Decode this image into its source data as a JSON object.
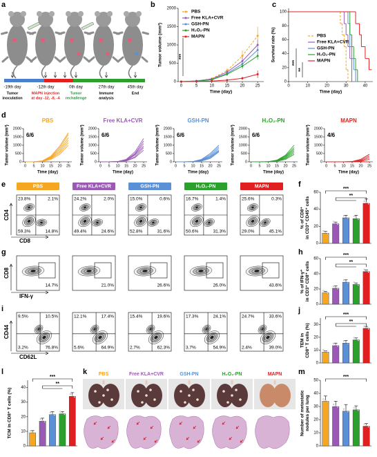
{
  "schematic": {
    "label": "a",
    "events": [
      {
        "day": "-19th day",
        "lines": [
          "Tumor",
          "inoculation"
        ],
        "color": "#000000"
      },
      {
        "day": "-12th day",
        "lines": [
          "MAPN injection",
          "at day -12, -8, -4"
        ],
        "color": "#e02020"
      },
      {
        "day": "0th day",
        "lines": [
          "Tumor",
          "rechallenge"
        ],
        "color": "#1a9a3a"
      },
      {
        "day": "27th day",
        "lines": [
          "Immune",
          "analysis"
        ],
        "color": "#000000"
      },
      {
        "day": "45th day",
        "lines": [
          "End"
        ],
        "color": "#000000"
      }
    ]
  },
  "chart_data": [
    {
      "type": "line",
      "label": "b",
      "ylabel": "Tumor volume (mm³)",
      "xlabel": "Time (day)",
      "x": [
        0,
        5,
        10,
        15,
        20,
        25
      ],
      "xlim": [
        -1,
        27
      ],
      "xticks": [
        0,
        5,
        10,
        15,
        20,
        25
      ],
      "ylim": [
        0,
        2000
      ],
      "yticks": [
        0,
        500,
        1000,
        1500,
        2000
      ],
      "legend": "upper left",
      "annotations": [
        "***"
      ],
      "series": [
        {
          "name": "PBS",
          "color": "#f5a623",
          "dashed": true,
          "values": [
            0,
            20,
            80,
            300,
            700,
            1250
          ],
          "errors": [
            0,
            5,
            20,
            60,
            150,
            250
          ]
        },
        {
          "name": "Free KLA+CVR",
          "color": "#9b59b6",
          "values": [
            0,
            20,
            70,
            260,
            560,
            1000
          ],
          "errors": [
            0,
            5,
            15,
            50,
            100,
            150
          ]
        },
        {
          "name": "GSH-PN",
          "color": "#5b8fd6",
          "values": [
            0,
            15,
            60,
            220,
            480,
            860
          ],
          "errors": [
            0,
            5,
            15,
            40,
            80,
            120
          ]
        },
        {
          "name": "H₂O₂-PN",
          "color": "#2ca02c",
          "values": [
            0,
            10,
            50,
            200,
            420,
            700
          ],
          "errors": [
            0,
            5,
            10,
            40,
            70,
            100
          ]
        },
        {
          "name": "MAPN",
          "color": "#e02020",
          "values": [
            0,
            5,
            15,
            40,
            90,
            200
          ],
          "errors": [
            0,
            2,
            5,
            15,
            40,
            100
          ]
        }
      ]
    },
    {
      "type": "step",
      "label": "c",
      "ylabel": "Survival rate (%)",
      "xlabel": "Time (day)",
      "xlim": [
        0,
        44
      ],
      "xticks": [
        0,
        10,
        20,
        30,
        40
      ],
      "ylim": [
        0,
        105
      ],
      "yticks": [
        0,
        20,
        40,
        60,
        80,
        100
      ],
      "legend": "center right",
      "annotations": [
        "***",
        "**"
      ],
      "series": [
        {
          "name": "PBS",
          "color": "#f5a623",
          "dashed": true,
          "x": [
            0,
            27,
            28,
            29,
            30,
            31
          ],
          "values": [
            100,
            83,
            67,
            50,
            17,
            0
          ]
        },
        {
          "name": "Free KLA+CVR",
          "color": "#9b59b6",
          "x": [
            0,
            29,
            30,
            31,
            32,
            33
          ],
          "values": [
            100,
            83,
            67,
            50,
            33,
            0
          ]
        },
        {
          "name": "GSH-PN",
          "color": "#5b8fd6",
          "x": [
            0,
            31,
            32,
            33,
            34,
            35
          ],
          "values": [
            100,
            83,
            50,
            33,
            17,
            0
          ]
        },
        {
          "name": "H₂O₂-PN",
          "color": "#2ca02c",
          "x": [
            0,
            32,
            33,
            34,
            35,
            36
          ],
          "values": [
            100,
            67,
            50,
            33,
            17,
            0
          ]
        },
        {
          "name": "MAPN",
          "color": "#e02020",
          "x": [
            0,
            35,
            37,
            38,
            40,
            42
          ],
          "values": [
            100,
            83,
            67,
            50,
            33,
            17
          ]
        }
      ]
    },
    {
      "type": "lines",
      "label": "d",
      "title": "PBS",
      "ratio": "6/6",
      "color": "#f5a623",
      "ylabel": "Tumor volume (mm³)",
      "xlabel": "Time (day)",
      "x": [
        0,
        5,
        10,
        15,
        20,
        25
      ],
      "xlim": [
        -1,
        27
      ],
      "xticks": [
        0,
        5,
        10,
        15,
        20,
        25
      ],
      "ylim": [
        0,
        2000
      ],
      "yticks": [
        0,
        500,
        1000,
        1500,
        2000
      ],
      "lines": [
        [
          0,
          0,
          60,
          350,
          950,
          1750
        ],
        [
          0,
          0,
          50,
          300,
          850,
          1650
        ],
        [
          0,
          0,
          40,
          260,
          750,
          1450
        ],
        [
          0,
          0,
          30,
          220,
          650,
          1300
        ],
        [
          0,
          0,
          40,
          200,
          550,
          1150
        ],
        [
          0,
          0,
          20,
          150,
          450,
          1000
        ]
      ]
    },
    {
      "type": "lines",
      "title": "Free KLA+CVR",
      "ratio": "6/6",
      "color": "#9b59b6",
      "ylabel": "Tumor volume (mm³)",
      "xlabel": "Time (day)",
      "x": [
        0,
        5,
        10,
        15,
        20,
        25
      ],
      "xlim": [
        -1,
        27
      ],
      "xticks": [
        0,
        5,
        10,
        15,
        20,
        25
      ],
      "ylim": [
        0,
        2000
      ],
      "yticks": [
        0,
        500,
        1000,
        1500,
        2000
      ],
      "lines": [
        [
          0,
          0,
          20,
          150,
          600,
          1400
        ],
        [
          0,
          0,
          20,
          120,
          500,
          1250
        ],
        [
          0,
          0,
          10,
          100,
          450,
          1100
        ],
        [
          0,
          0,
          10,
          80,
          400,
          950
        ],
        [
          0,
          0,
          0,
          60,
          300,
          850
        ],
        [
          0,
          0,
          0,
          50,
          250,
          700
        ]
      ]
    },
    {
      "type": "lines",
      "title": "GSH-PN",
      "ratio": "6/6",
      "color": "#5b8fd6",
      "ylabel": "Tumor volume (mm³)",
      "xlabel": "Time (day)",
      "x": [
        0,
        5,
        10,
        15,
        20,
        25
      ],
      "xlim": [
        -1,
        27
      ],
      "xticks": [
        0,
        5,
        10,
        15,
        20,
        25
      ],
      "ylim": [
        0,
        2000
      ],
      "yticks": [
        0,
        500,
        1000,
        1500,
        2000
      ],
      "lines": [
        [
          0,
          0,
          20,
          150,
          500,
          1000
        ],
        [
          0,
          0,
          10,
          120,
          420,
          900
        ],
        [
          0,
          0,
          10,
          100,
          350,
          800
        ],
        [
          0,
          0,
          0,
          80,
          300,
          700
        ],
        [
          0,
          0,
          0,
          60,
          250,
          650
        ],
        [
          0,
          0,
          0,
          50,
          200,
          600
        ]
      ]
    },
    {
      "type": "lines",
      "title": "H₂O₂-PN",
      "ratio": "6/6",
      "color": "#2ca02c",
      "ylabel": "Tumor volume (mm³)",
      "xlabel": "Time (day)",
      "x": [
        0,
        5,
        10,
        15,
        20,
        25
      ],
      "xlim": [
        -1,
        27
      ],
      "xticks": [
        0,
        5,
        10,
        15,
        20,
        25
      ],
      "ylim": [
        0,
        2000
      ],
      "yticks": [
        0,
        500,
        1000,
        1500,
        2000
      ],
      "lines": [
        [
          0,
          0,
          10,
          100,
          400,
          1000
        ],
        [
          0,
          0,
          10,
          80,
          350,
          850
        ],
        [
          0,
          0,
          0,
          60,
          300,
          750
        ],
        [
          0,
          0,
          0,
          50,
          250,
          650
        ],
        [
          0,
          0,
          0,
          40,
          200,
          550
        ],
        [
          0,
          0,
          0,
          30,
          150,
          450
        ]
      ]
    },
    {
      "type": "lines",
      "title": "MAPN",
      "ratio": "4/6",
      "color": "#e02020",
      "ylabel": "Tumor volume (mm³)",
      "xlabel": "Time (day)",
      "x": [
        0,
        5,
        10,
        15,
        20,
        25
      ],
      "xlim": [
        -1,
        27
      ],
      "xticks": [
        0,
        5,
        10,
        15,
        20,
        25
      ],
      "ylim": [
        0,
        2000
      ],
      "yticks": [
        0,
        500,
        1000,
        1500,
        2000
      ],
      "lines": [
        [
          0,
          0,
          0,
          20,
          150,
          450
        ],
        [
          0,
          0,
          0,
          10,
          100,
          350
        ],
        [
          0,
          0,
          0,
          0,
          60,
          250
        ],
        [
          0,
          0,
          0,
          0,
          30,
          150
        ],
        [
          0,
          0,
          0,
          0,
          0,
          0
        ],
        [
          0,
          0,
          0,
          0,
          0,
          0
        ]
      ]
    },
    {
      "type": "bar",
      "label": "f",
      "ylabel": [
        "% of CD8⁺",
        "in CD3⁺ CD45⁺ cells"
      ],
      "ylim": [
        0,
        60
      ],
      "yticks": [
        0,
        20,
        40,
        60
      ],
      "values": [
        12,
        23,
        30,
        29,
        47
      ],
      "errors": [
        2,
        2,
        3,
        4,
        5
      ],
      "colors": [
        "#f5a623",
        "#9b59b6",
        "#5b8fd6",
        "#2ca02c",
        "#e02020"
      ],
      "annotations": [
        "***",
        "**"
      ]
    },
    {
      "type": "bar",
      "label": "h",
      "ylabel": [
        "% of IFN-γ⁺",
        "in CD3⁺ CD8⁺ cells"
      ],
      "ylim": [
        0,
        60
      ],
      "yticks": [
        0,
        20,
        40,
        60
      ],
      "values": [
        15,
        21,
        29,
        26,
        43
      ],
      "errors": [
        2,
        3,
        3,
        2,
        2
      ],
      "colors": [
        "#f5a623",
        "#9b59b6",
        "#5b8fd6",
        "#2ca02c",
        "#e02020"
      ],
      "annotations": [
        "***",
        "**"
      ]
    },
    {
      "type": "bar",
      "label": "j",
      "ylabel": [
        "TEM in",
        "CD8⁺ T cells (%)"
      ],
      "ylim": [
        0,
        35
      ],
      "yticks": [
        0,
        10,
        20,
        30
      ],
      "values": [
        8.5,
        13.5,
        15.5,
        18,
        27
      ],
      "errors": [
        1,
        2,
        2,
        1.5,
        1.5
      ],
      "colors": [
        "#f5a623",
        "#9b59b6",
        "#5b8fd6",
        "#2ca02c",
        "#e02020"
      ],
      "annotations": [
        "***",
        "**"
      ]
    },
    {
      "type": "bar",
      "label": "l",
      "ylabel": [
        "TCM in CD8⁺ T cells (%)"
      ],
      "ylim": [
        0,
        45
      ],
      "yticks": [
        0,
        10,
        20,
        30,
        40
      ],
      "values": [
        9,
        17,
        21.5,
        22,
        34
      ],
      "errors": [
        1.5,
        2,
        2,
        1.5,
        2.5
      ],
      "colors": [
        "#f5a623",
        "#9b59b6",
        "#5b8fd6",
        "#2ca02c",
        "#e02020"
      ],
      "annotations": [
        "***",
        "**"
      ]
    },
    {
      "type": "bar",
      "label": "m",
      "ylabel": [
        "Number of metastatic",
        "nodules per lung"
      ],
      "ylim": [
        0,
        50
      ],
      "yticks": [
        0,
        10,
        20,
        30,
        40,
        50
      ],
      "values": [
        34,
        30,
        26.5,
        27.5,
        15
      ],
      "errors": [
        4,
        4,
        5,
        3,
        2
      ],
      "colors": [
        "#f5a623",
        "#9b59b6",
        "#5b8fd6",
        "#2ca02c",
        "#e02020"
      ],
      "annotations": [
        "***"
      ]
    }
  ],
  "flow": [
    {
      "label": "e",
      "xlabel": "CD8",
      "ylabel": "CD4",
      "headers": [
        {
          "name": "PBS",
          "color": "#f5a623"
        },
        {
          "name": "Free KLA+CVR",
          "color": "#9b59b6"
        },
        {
          "name": "GSH-PN",
          "color": "#5b8fd6"
        },
        {
          "name": "H₂O₂-PN",
          "color": "#2ca02c"
        },
        {
          "name": "MAPN",
          "color": "#e02020"
        }
      ],
      "plots": [
        [
          "23.8%",
          "2.1%",
          "59.3%",
          "14.8%"
        ],
        [
          "24.2%",
          "2.0%",
          "49.4%",
          "24.6%"
        ],
        [
          "15.0%",
          "0.6%",
          "52.8%",
          "31.6%"
        ],
        [
          "16.7%",
          "1.4%",
          "50.6%",
          "31.3%"
        ],
        [
          "25.6%",
          "0.3%",
          "29.0%",
          "45.1%"
        ]
      ]
    },
    {
      "label": "g",
      "xlabel": "IFN-γ",
      "ylabel": "CD8",
      "plots": [
        [
          "14.7%"
        ],
        [
          "21.0%"
        ],
        [
          "26.6%"
        ],
        [
          "26.0%"
        ],
        [
          "43.6%"
        ]
      ]
    },
    {
      "label": "i",
      "xlabel": "CD62L",
      "ylabel": "CD44",
      "plots": [
        [
          "9.5%",
          "10.5%",
          "3.2%",
          "76.8%"
        ],
        [
          "12.1%",
          "17.4%",
          "5.6%",
          "64.9%"
        ],
        [
          "15.4%",
          "19.6%",
          "2.7%",
          "62.3%"
        ],
        [
          "17.3%",
          "24.1%",
          "3.7%",
          "54.9%"
        ],
        [
          "24.7%",
          "33.6%",
          "2.4%",
          "39.0%"
        ]
      ]
    }
  ],
  "photos": {
    "label": "k",
    "headers": [
      {
        "name": "PBS",
        "color": "#f5a623"
      },
      {
        "name": "Free KLA+CVR",
        "color": "#9b59b6"
      },
      {
        "name": "GSH-PN",
        "color": "#5b8fd6"
      },
      {
        "name": "H₂O₂-PN",
        "color": "#2ca02c"
      },
      {
        "name": "MAPN",
        "color": "#e02020"
      }
    ]
  }
}
